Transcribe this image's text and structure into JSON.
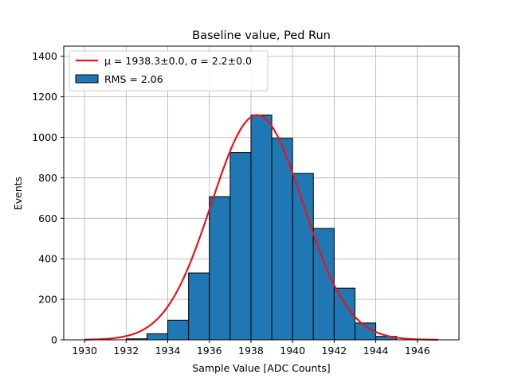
{
  "chart_data": {
    "type": "bar",
    "title": "Baseline value, Ped Run",
    "xlabel": "Sample Value [ADC Counts]",
    "ylabel": "Events",
    "xlim": [
      1929,
      1948
    ],
    "ylim": [
      0,
      1450
    ],
    "grid": true,
    "x_ticks": [
      1930,
      1932,
      1934,
      1936,
      1938,
      1940,
      1942,
      1944,
      1946
    ],
    "y_ticks": [
      0,
      200,
      400,
      600,
      800,
      1000,
      1200,
      1400
    ],
    "legend_placement": "top-left",
    "histogram": {
      "name": "RMS = 2.06",
      "color": "#1f77b4",
      "edgecolor": "#000000",
      "bins": [
        {
          "x0": 1932,
          "x1": 1933,
          "count": 5
        },
        {
          "x0": 1933,
          "x1": 1934,
          "count": 30
        },
        {
          "x0": 1934,
          "x1": 1935,
          "count": 97
        },
        {
          "x0": 1935,
          "x1": 1936,
          "count": 330
        },
        {
          "x0": 1936,
          "x1": 1937,
          "count": 707
        },
        {
          "x0": 1937,
          "x1": 1938,
          "count": 925
        },
        {
          "x0": 1938,
          "x1": 1939,
          "count": 1110
        },
        {
          "x0": 1939,
          "x1": 1940,
          "count": 995
        },
        {
          "x0": 1940,
          "x1": 1941,
          "count": 822
        },
        {
          "x0": 1941,
          "x1": 1942,
          "count": 550
        },
        {
          "x0": 1942,
          "x1": 1943,
          "count": 255
        },
        {
          "x0": 1943,
          "x1": 1944,
          "count": 83
        },
        {
          "x0": 1944,
          "x1": 1945,
          "count": 17
        }
      ]
    },
    "fit": {
      "name": "μ = 1938.3±0.0, σ = 2.2±0.0",
      "color": "#e8141c",
      "type": "gaussian",
      "mean": 1938.3,
      "sigma": 2.2,
      "amplitude": 1110,
      "x_range": [
        1930,
        1947
      ]
    }
  }
}
